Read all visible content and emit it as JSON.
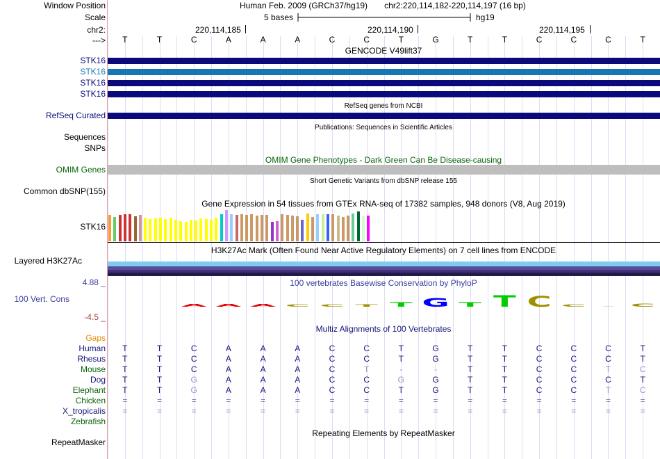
{
  "labels": {
    "window_position": "Window Position",
    "scale": "Scale",
    "chr": "chr2:",
    "strand": "--->",
    "gencode": [
      "STK16",
      "STK16",
      "STK16",
      "STK16"
    ],
    "refseq": "RefSeq Curated",
    "sequences": "Sequences",
    "snps": "SNPs",
    "omim": "OMIM Genes",
    "dbsnp": "Common dbSNP(155)",
    "gtex": "STK16",
    "h3k27ac": "Layered H3K27Ac",
    "cons_max": "4.88 _",
    "cons": "100 Vert. Cons",
    "cons_min": "-4.5 _",
    "gaps": "Gaps",
    "species": [
      "Human",
      "Rhesus",
      "Mouse",
      "Dog",
      "Elephant",
      "Chicken",
      "X_tropicalis",
      "Zebrafish"
    ],
    "repeatmasker": "RepeatMasker"
  },
  "header": {
    "assembly": "Human Feb. 2009 (GRCh37/hg19)",
    "position": "chr2:220,114,182-220,114,197 (16 bp)",
    "scale_text": "5 bases",
    "db": "hg19",
    "coords": [
      "220,114,185",
      "220,114,190",
      "220,114,195"
    ]
  },
  "bases": [
    "T",
    "T",
    "C",
    "A",
    "A",
    "A",
    "C",
    "C",
    "T",
    "G",
    "T",
    "T",
    "C",
    "C",
    "C",
    "T"
  ],
  "titles": {
    "gencode": "GENCODE V49lift37",
    "refseq": "RefSeq genes from NCBI",
    "publications": "Publications: Sequences in Scientific Articles",
    "omim": "OMIM Gene Phenotypes - Dark Green Can Be Disease-causing",
    "dbsnp": "Short Genetic Variants from dbSNP release 155",
    "gtex": "Gene Expression in 54 tissues from GTEx RNA-seq of 17382 samples, 948 donors (V8, Aug 2019)",
    "h3k27ac": "H3K27Ac Mark (Often Found Near Active Regulatory Elements) on 7 cell lines from ENCODE",
    "phylop": "100 vertebrates Basewise Conservation by PhyloP",
    "multiz": "Multiz Alignments of 100 Vertebrates",
    "repeatmasker": "Repeating Elements by RepeatMasker"
  },
  "alignment": [
    [
      "T",
      "T",
      "C",
      "A",
      "A",
      "A",
      "C",
      "C",
      "T",
      "G",
      "T",
      "T",
      "C",
      "C",
      "C",
      "T"
    ],
    [
      "T",
      "T",
      "C",
      "A",
      "A",
      "A",
      "C",
      "C",
      "T",
      "G",
      "T",
      "T",
      "C",
      "C",
      "C",
      "T"
    ],
    [
      "T",
      "T",
      "C",
      "A",
      "A",
      "A",
      "C",
      "T",
      "-",
      "-",
      "T",
      "T",
      "C",
      "C",
      "T",
      "C"
    ],
    [
      "T",
      "T",
      "G",
      "A",
      "A",
      "A",
      "C",
      "C",
      "G",
      "G",
      "T",
      "T",
      "C",
      "C",
      "C",
      "T"
    ],
    [
      "T",
      "T",
      "G",
      "A",
      "A",
      "A",
      "C",
      "C",
      "T",
      "G",
      "T",
      "T",
      "C",
      "C",
      "T",
      "C"
    ],
    [
      "=",
      "=",
      "=",
      "=",
      "=",
      "=",
      "=",
      "=",
      "=",
      "=",
      "=",
      "=",
      "=",
      "=",
      "=",
      "="
    ],
    [
      "=",
      "=",
      "=",
      "=",
      "=",
      "=",
      "=",
      "=",
      "=",
      "=",
      "=",
      "=",
      "=",
      "=",
      "=",
      "="
    ],
    [
      "",
      "",
      "",
      "",
      "",
      "",
      "",
      "",
      "",
      "",
      "",
      "",
      "",
      "",
      "",
      ""
    ]
  ],
  "gtex_colors": [
    "#ff9933",
    "#66cc66",
    "#cc3333",
    "#cc3333",
    "#cc3333",
    "#996633",
    "#cc9999",
    "#ffff00",
    "#ffff00",
    "#ffff00",
    "#ffff00",
    "#ffff00",
    "#ffff00",
    "#ffff00",
    "#ffff00",
    "#ffff00",
    "#ffff00",
    "#ffff00",
    "#ffff00",
    "#ffff00",
    "#ffff00",
    "#ffff00",
    "#00cccc",
    "#cc99ff",
    "#99ccff",
    "#cc6666",
    "#cc9966",
    "#cc9966",
    "#cc9966",
    "#cc9966",
    "#cc9966",
    "#cc9966",
    "#9933cc",
    "#cc66cc",
    "#cc9966",
    "#cc9966",
    "#cc9966",
    "#cc9966",
    "#6666cc",
    "#ffcc00",
    "#cc9966",
    "#99ccff",
    "#ccee99",
    "#3366ff",
    "#cc9966",
    "#ccbb88",
    "#cc9966",
    "#cc9966",
    "#66cc99",
    "#006633",
    "#ccffcc",
    "#ff00ff"
  ],
  "gtex_values": [
    0.8,
    0.75,
    0.8,
    0.82,
    0.82,
    0.76,
    0.8,
    0.72,
    0.68,
    0.7,
    0.72,
    0.68,
    0.72,
    0.66,
    0.62,
    0.6,
    0.66,
    0.64,
    0.7,
    0.68,
    0.66,
    0.72,
    0.82,
    0.95,
    0.82,
    0.8,
    0.82,
    0.8,
    0.82,
    0.78,
    0.8,
    0.8,
    0.6,
    0.62,
    0.82,
    0.8,
    0.78,
    0.76,
    0.66,
    0.86,
    0.74,
    0.82,
    0.82,
    0.82,
    0.82,
    0.78,
    0.74,
    0.78,
    0.86,
    0.92,
    0.76,
    0.78
  ],
  "phylop": [
    {
      "b": "A",
      "h": 0.18,
      "c": "#e00000"
    },
    {
      "b": "A",
      "h": 0.18,
      "c": "#e00000"
    },
    {
      "b": "A",
      "h": 0.18,
      "c": "#e00000"
    },
    {
      "b": "C",
      "h": 0.15,
      "c": "#a09000"
    },
    {
      "b": "C",
      "h": 0.15,
      "c": "#a09000"
    },
    {
      "b": "T",
      "h": 0.15,
      "c": "#a09000"
    },
    {
      "b": "T",
      "h": 0.28,
      "c": "#00cc00"
    },
    {
      "b": "G",
      "h": 0.55,
      "c": "#0000ff"
    },
    {
      "b": "T",
      "h": 0.28,
      "c": "#00cc00"
    },
    {
      "b": "T",
      "h": 0.75,
      "c": "#00cc00"
    },
    {
      "b": "C",
      "h": 0.7,
      "c": "#a09000"
    },
    {
      "b": "C",
      "h": 0.15,
      "c": "#a09000"
    },
    {
      "b": "-",
      "h": 0.05,
      "c": "#a09000"
    },
    {
      "b": "C",
      "h": 0.2,
      "c": "#a09000"
    }
  ]
}
